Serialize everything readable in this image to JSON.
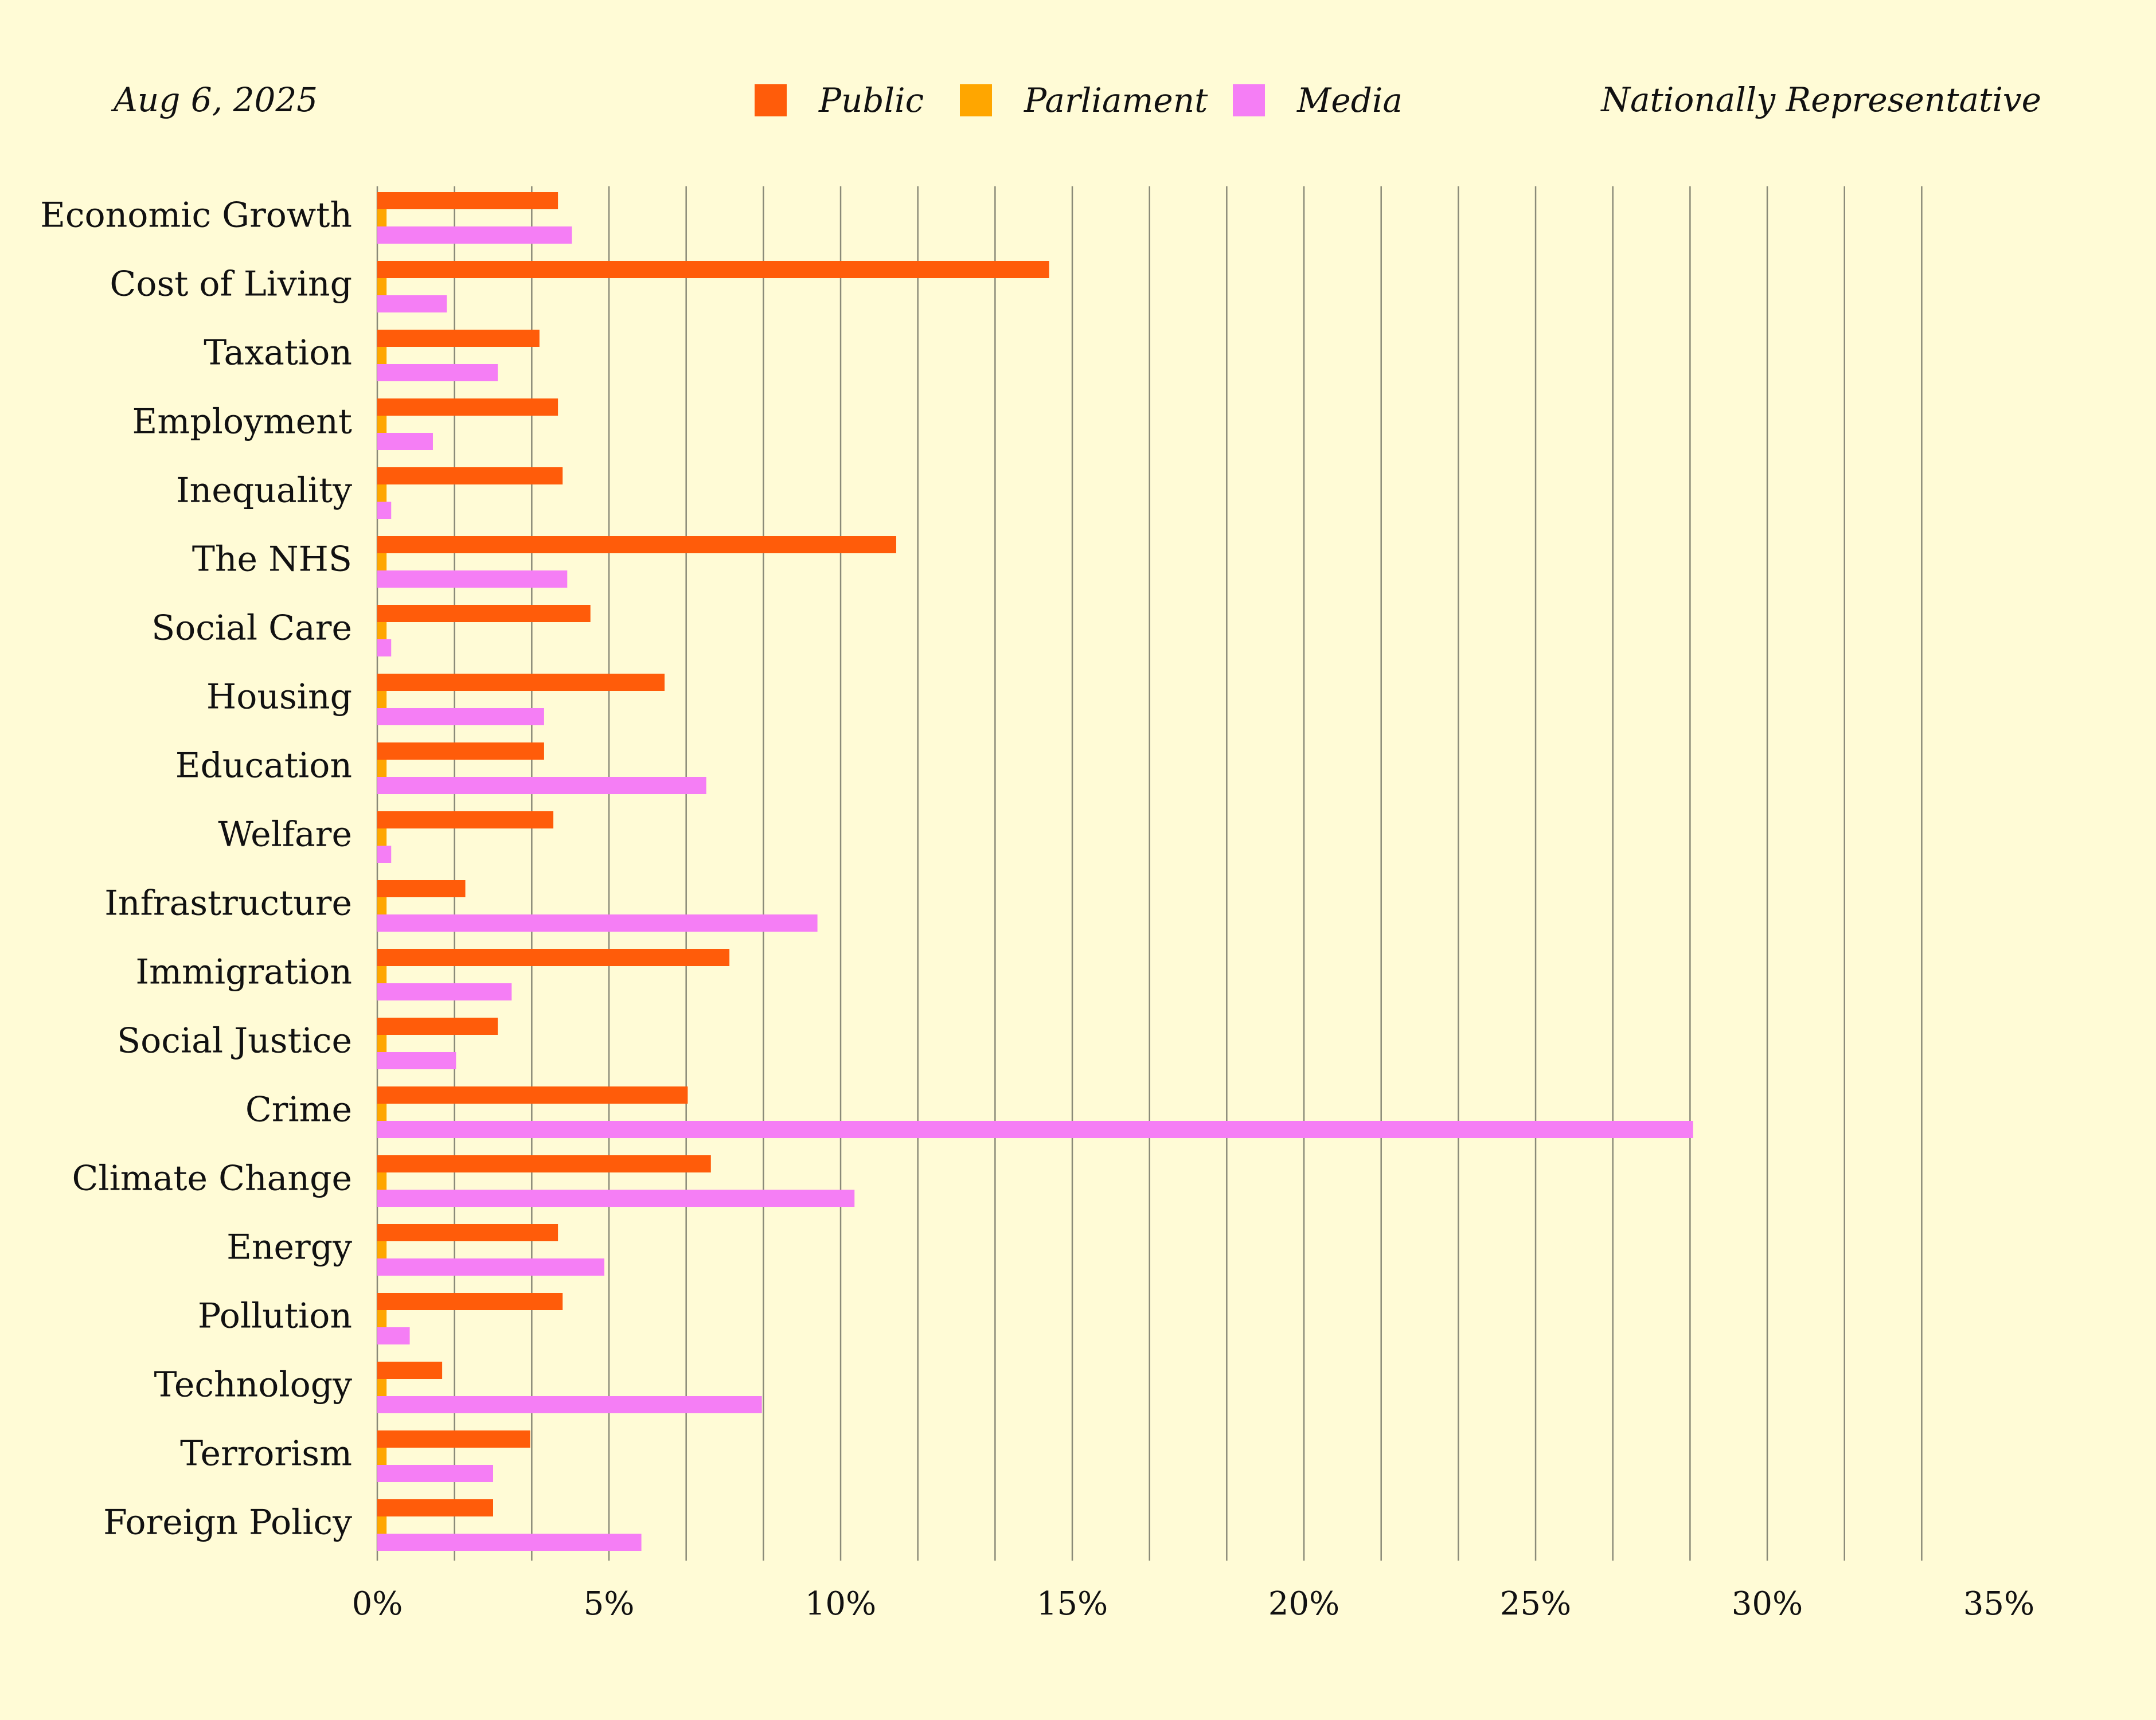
{
  "header": {
    "date": "Aug 6, 2025",
    "sample": "Nationally Representative"
  },
  "legend": [
    {
      "label": "Public",
      "color": "#ff5c0a"
    },
    {
      "label": "Parliament",
      "color": "#ffa600"
    },
    {
      "label": "Media",
      "color": "#f57ef5"
    }
  ],
  "chart_data": {
    "type": "bar",
    "orientation": "horizontal",
    "categories": [
      "Economic Growth",
      "Cost of Living",
      "Taxation",
      "Employment",
      "Inequality",
      "The NHS",
      "Social Care",
      "Housing",
      "Education",
      "Welfare",
      "Infrastructure",
      "Immigration",
      "Social Justice",
      "Crime",
      "Climate Change",
      "Energy",
      "Pollution",
      "Technology",
      "Terrorism",
      "Foreign Policy"
    ],
    "series": [
      {
        "name": "Public",
        "color": "#ff5c0a",
        "values": [
          3.9,
          14.5,
          3.5,
          3.9,
          4.0,
          11.2,
          4.6,
          6.2,
          3.6,
          3.8,
          1.9,
          7.6,
          2.6,
          6.7,
          7.2,
          3.9,
          4.0,
          1.4,
          3.3,
          2.5
        ]
      },
      {
        "name": "Parliament",
        "color": "#ffa600",
        "values": [
          0.2,
          0.2,
          0.2,
          0.2,
          0.2,
          0.2,
          0.2,
          0.2,
          0.2,
          0.2,
          0.2,
          0.2,
          0.2,
          0.2,
          0.2,
          0.2,
          0.2,
          0.2,
          0.2,
          0.2
        ]
      },
      {
        "name": "Media",
        "color": "#f57ef5",
        "values": [
          4.2,
          1.5,
          2.6,
          1.2,
          0.3,
          4.1,
          0.3,
          3.6,
          7.1,
          0.3,
          9.5,
          2.9,
          1.7,
          28.4,
          10.3,
          4.9,
          0.7,
          8.3,
          2.5,
          5.7
        ]
      }
    ],
    "xlim": [
      0,
      35
    ],
    "xticks": [
      0,
      5,
      10,
      15,
      20,
      25,
      30,
      35
    ],
    "tick_suffix": "%",
    "grid": true,
    "grid_step": 1.6667,
    "legend_position": "top-center"
  }
}
